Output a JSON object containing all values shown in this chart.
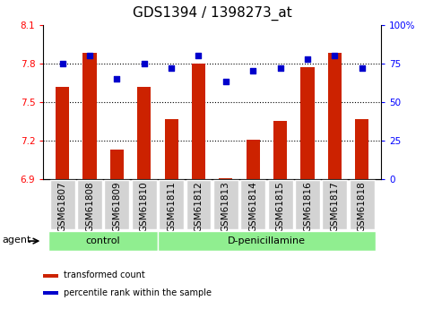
{
  "title": "GDS1394 / 1398273_at",
  "categories": [
    "GSM61807",
    "GSM61808",
    "GSM61809",
    "GSM61810",
    "GSM61811",
    "GSM61812",
    "GSM61813",
    "GSM61814",
    "GSM61815",
    "GSM61816",
    "GSM61817",
    "GSM61818"
  ],
  "red_values": [
    7.62,
    7.88,
    7.13,
    7.62,
    7.37,
    7.8,
    6.91,
    7.21,
    7.35,
    7.77,
    7.88,
    7.37
  ],
  "blue_values": [
    75,
    80,
    65,
    75,
    72,
    80,
    63,
    70,
    72,
    78,
    80,
    72
  ],
  "ylim_left": [
    6.9,
    8.1
  ],
  "ylim_right": [
    0,
    100
  ],
  "yticks_left": [
    6.9,
    7.2,
    7.5,
    7.8,
    8.1
  ],
  "yticks_right": [
    0,
    25,
    50,
    75,
    100
  ],
  "ytick_labels_left": [
    "6.9",
    "7.2",
    "7.5",
    "7.8",
    "8.1"
  ],
  "ytick_labels_right": [
    "0",
    "25",
    "50",
    "75",
    "100%"
  ],
  "hlines": [
    7.2,
    7.5,
    7.8
  ],
  "control_count": 4,
  "treatment_count": 8,
  "control_label": "control",
  "treatment_label": "D-penicillamine",
  "agent_label": "agent",
  "legend_red": "transformed count",
  "legend_blue": "percentile rank within the sample",
  "bar_color": "#cc2200",
  "dot_color": "#0000cc",
  "bar_baseline": 6.9,
  "group_bg": "#90ee90",
  "tick_bg": "#d3d3d3",
  "title_fontsize": 11,
  "tick_fontsize": 7.5,
  "label_fontsize": 8,
  "legend_fontsize": 7
}
